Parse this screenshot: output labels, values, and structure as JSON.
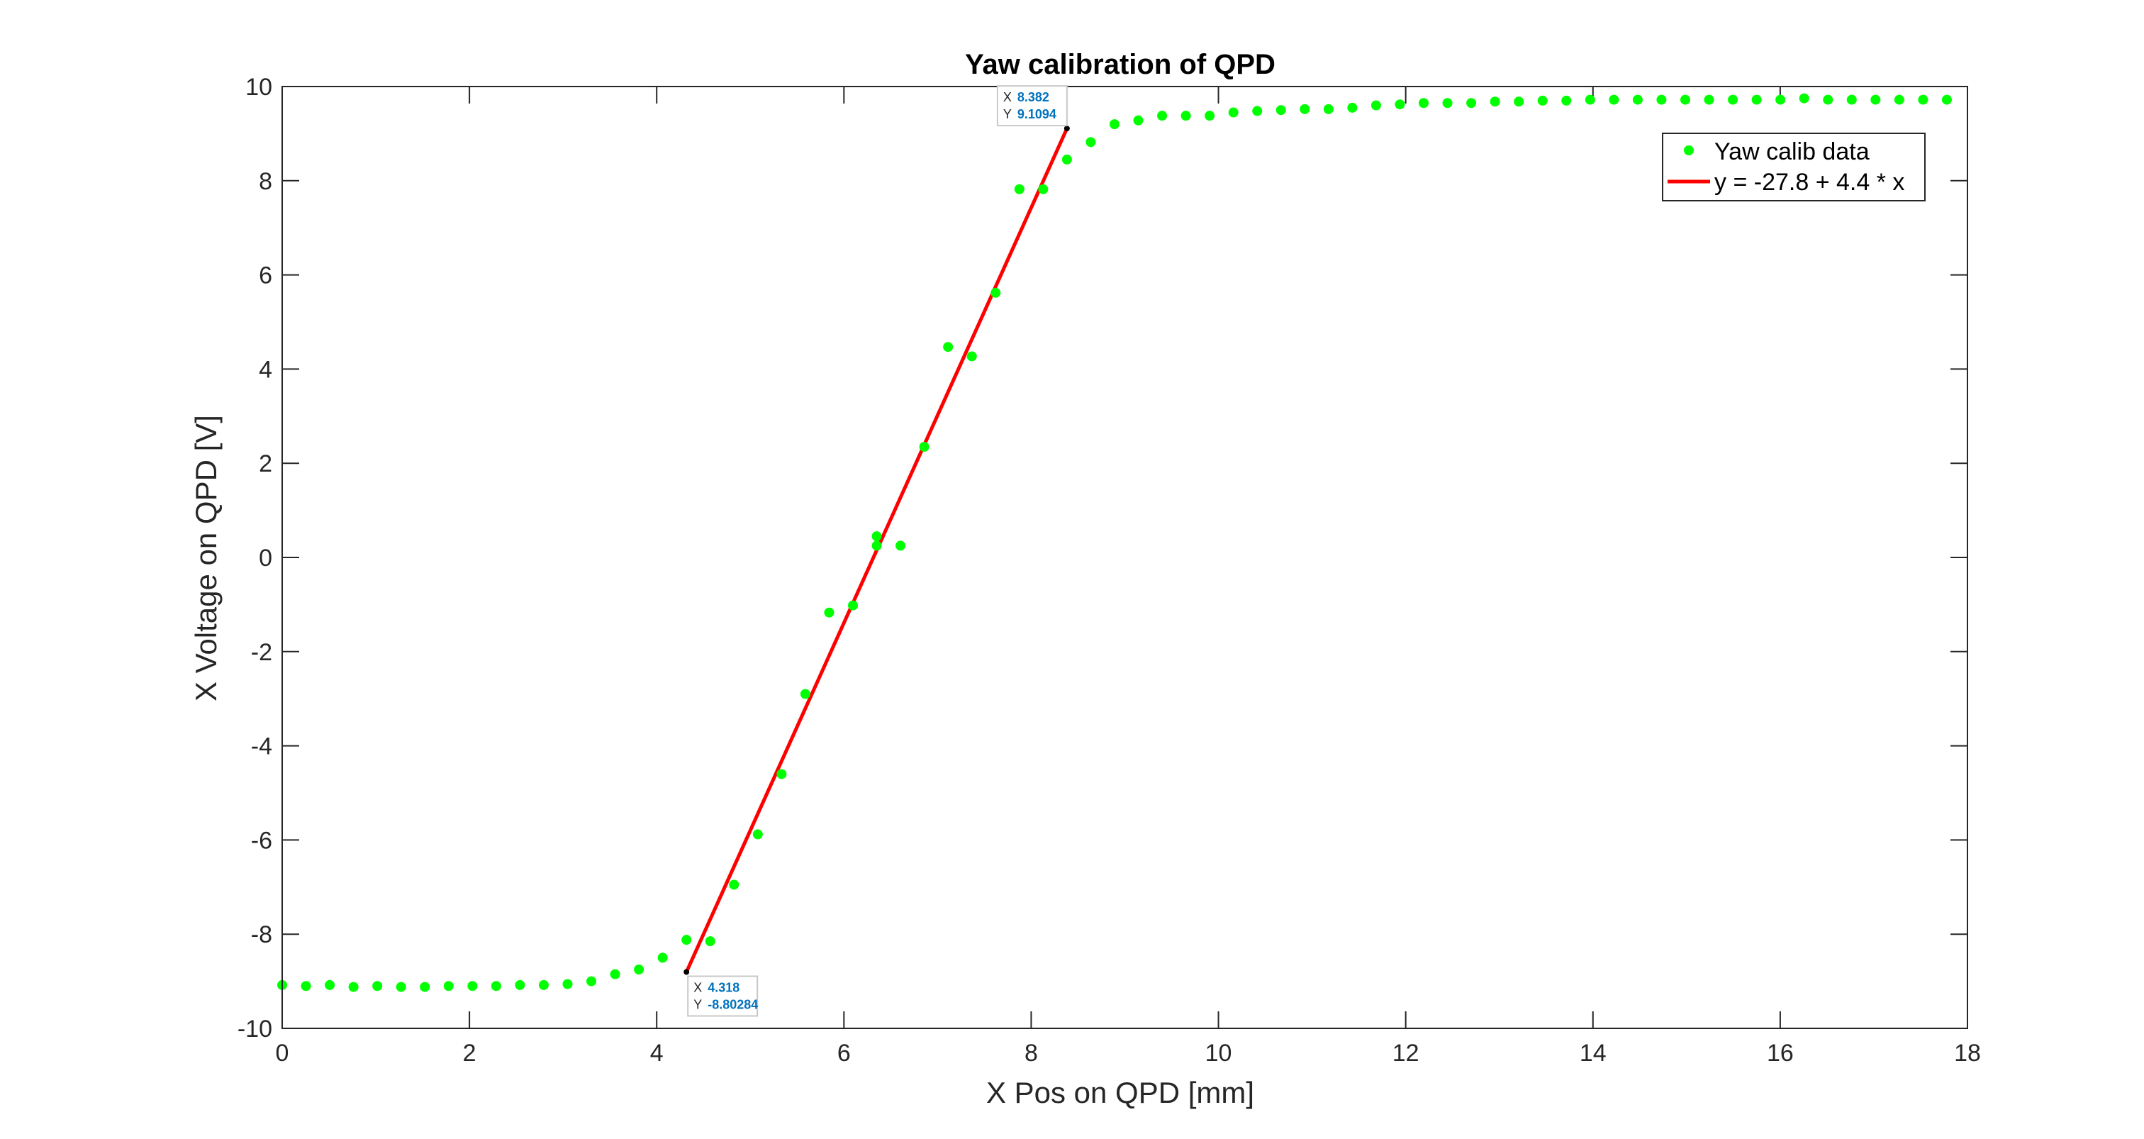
{
  "chart_data": {
    "type": "scatter",
    "title": "Yaw calibration of QPD",
    "xlabel": "X Pos on QPD [mm]",
    "ylabel": "X Voltage on QPD [V]",
    "xlim": [
      0,
      18
    ],
    "ylim": [
      -10,
      10
    ],
    "xticks": [
      "0",
      "2",
      "4",
      "6",
      "8",
      "10",
      "12",
      "14",
      "16",
      "18"
    ],
    "yticks": [
      "-10",
      "-8",
      "-6",
      "-4",
      "-2",
      "0",
      "2",
      "4",
      "6",
      "8",
      "10"
    ],
    "grid": false,
    "legend_position": "top-right",
    "series": [
      {
        "name": "Yaw calib data",
        "marker": "dot",
        "color": "#00ff00",
        "x": [
          0,
          0.254,
          0.508,
          0.762,
          1.016,
          1.27,
          1.524,
          1.778,
          2.032,
          2.286,
          2.54,
          2.794,
          3.048,
          3.302,
          3.556,
          3.81,
          4.064,
          4.318,
          4.572,
          4.826,
          5.08,
          5.334,
          5.588,
          5.842,
          6.096,
          6.35,
          6.35,
          6.604,
          6.858,
          7.112,
          7.366,
          7.62,
          7.874,
          8.128,
          8.382,
          8.636,
          8.89,
          9.144,
          9.398,
          9.652,
          9.906,
          10.16,
          10.414,
          10.668,
          10.922,
          11.176,
          11.43,
          11.684,
          11.938,
          12.192,
          12.446,
          12.7,
          12.954,
          13.208,
          13.462,
          13.716,
          13.97,
          14.224,
          14.478,
          14.732,
          14.986,
          15.24,
          15.494,
          15.748,
          16.002,
          16.256,
          16.51,
          16.764,
          17.018,
          17.272,
          17.526,
          17.78
        ],
        "y": [
          -9.08,
          -9.1,
          -9.08,
          -9.12,
          -9.1,
          -9.12,
          -9.12,
          -9.1,
          -9.1,
          -9.1,
          -9.08,
          -9.08,
          -9.06,
          -9.0,
          -8.85,
          -8.75,
          -8.5,
          -8.12,
          -8.15,
          -6.95,
          -5.88,
          -4.6,
          -2.9,
          -1.17,
          -1.02,
          0.45,
          0.25,
          0.25,
          2.35,
          4.47,
          4.27,
          5.62,
          7.82,
          7.82,
          8.45,
          8.82,
          9.2,
          9.28,
          9.38,
          9.38,
          9.38,
          9.45,
          9.48,
          9.5,
          9.52,
          9.52,
          9.55,
          9.6,
          9.62,
          9.65,
          9.65,
          9.65,
          9.68,
          9.68,
          9.7,
          9.7,
          9.72,
          9.72,
          9.72,
          9.72,
          9.72,
          9.72,
          9.72,
          9.72,
          9.72,
          9.75,
          9.72,
          9.72,
          9.72,
          9.72,
          9.72,
          9.72
        ]
      },
      {
        "name": "y = -27.8 + 4.4 * x",
        "marker": "line",
        "color": "#ff0000",
        "x": [
          4.318,
          8.382
        ],
        "y": [
          -8.80284,
          9.1094
        ]
      }
    ],
    "datatips": [
      {
        "x_key": "X",
        "x_value": "8.382",
        "y_key": "Y",
        "y_value": "9.1094",
        "x": 8.382,
        "y": 9.1094,
        "placement": "above-left"
      },
      {
        "x_key": "X",
        "x_value": "4.318",
        "y_key": "Y",
        "y_value": "-8.80284",
        "x": 4.318,
        "y": -8.80284,
        "placement": "below-right"
      }
    ]
  }
}
